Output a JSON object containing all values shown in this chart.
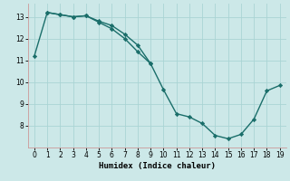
{
  "xlabel": "Humidex (Indice chaleur)",
  "background_color": "#cce8e8",
  "line_color": "#1a6e6a",
  "curve1_x": [
    0,
    1,
    2,
    3,
    4,
    5,
    6,
    7,
    8,
    9,
    10,
    11,
    12,
    13,
    14,
    15,
    16,
    17,
    18,
    19
  ],
  "curve1_y": [
    11.2,
    13.2,
    13.1,
    13.0,
    13.05,
    12.75,
    12.45,
    12.0,
    11.4,
    10.85,
    9.65,
    8.55,
    8.4,
    8.1,
    7.55,
    7.4,
    7.6,
    8.3,
    9.6,
    9.85
  ],
  "curve2_x": [
    1,
    2,
    3,
    4,
    5,
    6,
    7,
    8,
    9
  ],
  "curve2_y": [
    13.2,
    13.1,
    13.0,
    13.05,
    12.8,
    12.6,
    12.2,
    11.7,
    10.85
  ],
  "xlim": [
    -0.5,
    19.5
  ],
  "ylim": [
    7.0,
    13.6
  ],
  "yticks": [
    8,
    9,
    10,
    11,
    12,
    13
  ],
  "xticks": [
    0,
    1,
    2,
    3,
    4,
    5,
    6,
    7,
    8,
    9,
    10,
    11,
    12,
    13,
    14,
    15,
    16,
    17,
    18,
    19
  ],
  "grid_color": "#aad4d4",
  "marker": "D",
  "marker_size": 2.2,
  "line_width": 1.0,
  "tick_labelsize": 5.5,
  "xlabel_fontsize": 6.5
}
